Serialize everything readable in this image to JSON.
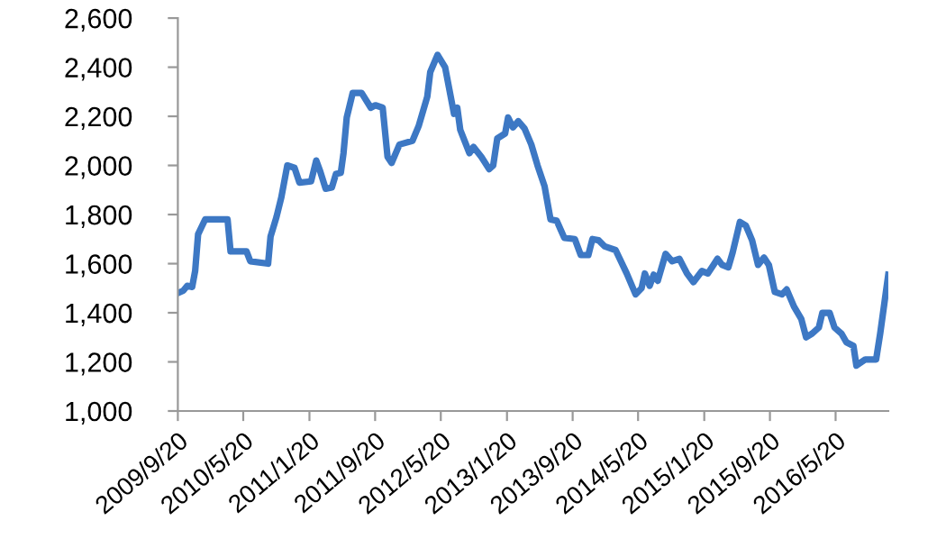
{
  "chart_data": {
    "type": "line",
    "grid": false,
    "marker": "none",
    "line_style": "solid",
    "x": [
      "2009-09-20",
      "2009-10-10",
      "2009-10-25",
      "2009-11-12",
      "2009-11-23",
      "2009-12-04",
      "2009-12-30",
      "2010-03-23",
      "2010-04-03",
      "2010-06-01",
      "2010-06-15",
      "2010-08-20",
      "2010-08-29",
      "2010-09-20",
      "2010-10-08",
      "2010-10-30",
      "2010-11-26",
      "2010-12-14",
      "2011-01-26",
      "2011-02-14",
      "2011-03-01",
      "2011-03-21",
      "2011-04-13",
      "2011-04-28",
      "2011-05-16",
      "2011-05-26",
      "2011-06-07",
      "2011-06-29",
      "2011-08-01",
      "2011-09-04",
      "2011-09-21",
      "2011-10-18",
      "2011-11-05",
      "2011-11-20",
      "2011-12-19",
      "2012-02-05",
      "2012-02-28",
      "2012-03-31",
      "2012-04-11",
      "2012-05-08",
      "2012-06-05",
      "2012-07-08",
      "2012-07-20",
      "2012-07-31",
      "2012-09-03",
      "2012-09-18",
      "2012-10-17",
      "2012-11-15",
      "2012-11-30",
      "2012-12-15",
      "2013-01-13",
      "2013-01-24",
      "2013-02-11",
      "2013-03-03",
      "2013-03-26",
      "2013-04-20",
      "2013-05-13",
      "2013-06-08",
      "2013-06-30",
      "2013-07-23",
      "2013-08-20",
      "2013-09-28",
      "2013-10-20",
      "2013-11-17",
      "2013-12-02",
      "2013-12-25",
      "2014-01-17",
      "2014-02-26",
      "2014-04-08",
      "2014-05-11",
      "2014-06-02",
      "2014-06-14",
      "2014-07-02",
      "2014-07-17",
      "2014-08-01",
      "2014-08-30",
      "2014-09-23",
      "2014-10-20",
      "2014-11-17",
      "2014-12-11",
      "2015-01-11",
      "2015-02-02",
      "2015-02-23",
      "2015-03-10",
      "2015-03-27",
      "2015-04-19",
      "2015-05-05",
      "2015-06-01",
      "2015-06-23",
      "2015-07-16",
      "2015-08-07",
      "2015-08-29",
      "2015-09-16",
      "2015-10-08",
      "2015-11-04",
      "2015-11-21",
      "2015-12-18",
      "2016-01-14",
      "2016-02-01",
      "2016-02-23",
      "2016-03-19",
      "2016-04-01",
      "2016-04-28",
      "2016-05-16",
      "2016-06-11",
      "2016-06-29",
      "2016-07-25",
      "2016-08-05",
      "2016-09-07",
      "2016-10-17",
      "2016-11-01",
      "2016-12-01"
    ],
    "series": [
      {
        "color": "#3d78c4",
        "values": [
          1480,
          1490,
          1510,
          1505,
          1570,
          1720,
          1780,
          1780,
          1650,
          1650,
          1610,
          1600,
          1710,
          1790,
          1870,
          2000,
          1990,
          1930,
          1935,
          2020,
          1975,
          1905,
          1910,
          1965,
          1970,
          2050,
          2195,
          2295,
          2295,
          2235,
          2245,
          2235,
          2035,
          2010,
          2085,
          2100,
          2160,
          2280,
          2380,
          2450,
          2400,
          2210,
          2235,
          2145,
          2050,
          2075,
          2035,
          1985,
          2000,
          2110,
          2130,
          2195,
          2155,
          2180,
          2150,
          2085,
          2000,
          1915,
          1780,
          1775,
          1705,
          1700,
          1635,
          1635,
          1700,
          1695,
          1670,
          1655,
          1560,
          1475,
          1500,
          1560,
          1510,
          1555,
          1530,
          1640,
          1610,
          1620,
          1560,
          1525,
          1570,
          1560,
          1595,
          1620,
          1595,
          1585,
          1645,
          1770,
          1755,
          1695,
          1595,
          1625,
          1595,
          1485,
          1475,
          1495,
          1425,
          1375,
          1300,
          1315,
          1340,
          1400,
          1400,
          1340,
          1315,
          1280,
          1265,
          1185,
          1210,
          1210,
          1315,
          1555
        ]
      }
    ],
    "xlim": [
      "2009-09-20",
      "2016-12-01"
    ],
    "xticks": [
      {
        "value": "2009-09-20",
        "label": "2009/9/20"
      },
      {
        "value": "2010-05-20",
        "label": "2010/5/20"
      },
      {
        "value": "2011-01-20",
        "label": "2011/1/20"
      },
      {
        "value": "2011-09-20",
        "label": "2011/9/20"
      },
      {
        "value": "2012-05-20",
        "label": "2012/5/20"
      },
      {
        "value": "2013-01-20",
        "label": "2013/1/20"
      },
      {
        "value": "2013-09-20",
        "label": "2013/9/20"
      },
      {
        "value": "2014-05-20",
        "label": "2014/5/20"
      },
      {
        "value": "2015-01-20",
        "label": "2015/1/20"
      },
      {
        "value": "2015-09-20",
        "label": "2015/9/20"
      },
      {
        "value": "2016-05-20",
        "label": "2016/5/20"
      }
    ],
    "ylim": [
      1000,
      2600
    ],
    "yticks": [
      {
        "value": 1000,
        "label": "1,000"
      },
      {
        "value": 1200,
        "label": "1,200"
      },
      {
        "value": 1400,
        "label": "1,400"
      },
      {
        "value": 1600,
        "label": "1,600"
      },
      {
        "value": 1800,
        "label": "1,800"
      },
      {
        "value": 2000,
        "label": "2,000"
      },
      {
        "value": 2200,
        "label": "2,200"
      },
      {
        "value": 2400,
        "label": "2,400"
      },
      {
        "value": 2600,
        "label": "2,600"
      }
    ]
  }
}
